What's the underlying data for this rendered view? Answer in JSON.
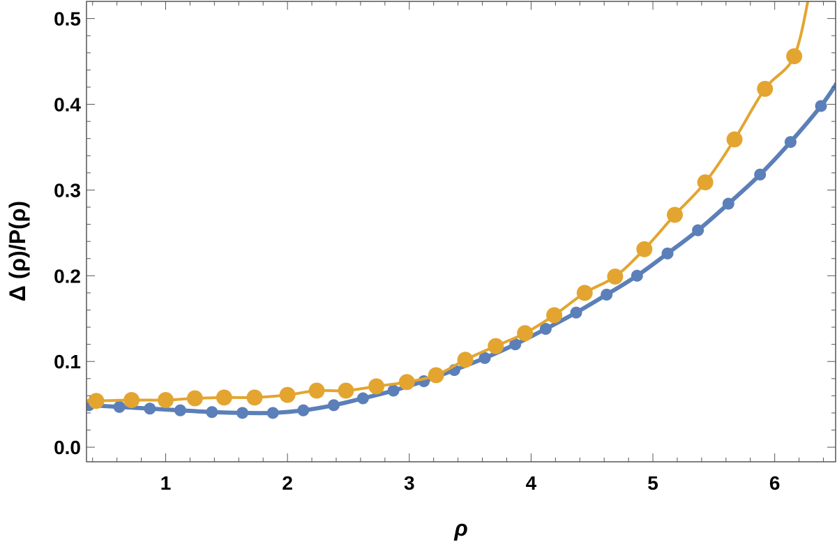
{
  "chart_data": {
    "type": "line",
    "title": "",
    "xlabel": "ρ",
    "ylabel": "Δ (ρ)/P(ρ)",
    "ylabel_accent": "˙",
    "xlim": [
      0.35,
      6.5
    ],
    "ylim": [
      -0.017,
      0.52
    ],
    "x_ticks": [
      1,
      2,
      3,
      4,
      5,
      6
    ],
    "y_ticks": [
      0.0,
      0.1,
      0.2,
      0.3,
      0.4,
      0.5
    ],
    "x_tick_labels": [
      "1",
      "2",
      "3",
      "4",
      "5",
      "6"
    ],
    "y_tick_labels": [
      "0.0",
      "0.1",
      "0.2",
      "0.3",
      "0.4",
      "0.5"
    ],
    "grid": false,
    "legend": "none",
    "series": [
      {
        "color": "#5b7fb8",
        "marker": "small-circle",
        "line_extends_to_y": 0.425,
        "x": [
          0.37,
          0.62,
          0.87,
          1.12,
          1.38,
          1.63,
          1.88,
          2.13,
          2.38,
          2.62,
          2.87,
          3.12,
          3.37,
          3.62,
          3.87,
          4.12,
          4.37,
          4.62,
          4.87,
          5.12,
          5.37,
          5.62,
          5.88,
          6.13,
          6.38
        ],
        "values": [
          0.049,
          0.047,
          0.045,
          0.043,
          0.041,
          0.04,
          0.04,
          0.043,
          0.049,
          0.057,
          0.066,
          0.077,
          0.09,
          0.104,
          0.12,
          0.138,
          0.157,
          0.178,
          0.2,
          0.226,
          0.253,
          0.284,
          0.318,
          0.356,
          0.398
        ]
      },
      {
        "color": "#e3a530",
        "marker": "large-circle",
        "line_extends_to_y": 0.52,
        "x": [
          0.43,
          0.72,
          1.0,
          1.24,
          1.48,
          1.73,
          2.0,
          2.24,
          2.48,
          2.73,
          2.98,
          3.22,
          3.46,
          3.71,
          3.95,
          4.19,
          4.44,
          4.69,
          4.93,
          5.18,
          5.43,
          5.67,
          5.92,
          6.16
        ],
        "values": [
          0.054,
          0.055,
          0.055,
          0.057,
          0.058,
          0.058,
          0.061,
          0.066,
          0.066,
          0.071,
          0.076,
          0.084,
          0.102,
          0.118,
          0.133,
          0.154,
          0.18,
          0.199,
          0.231,
          0.271,
          0.309,
          0.359,
          0.418,
          0.456
        ]
      }
    ]
  }
}
